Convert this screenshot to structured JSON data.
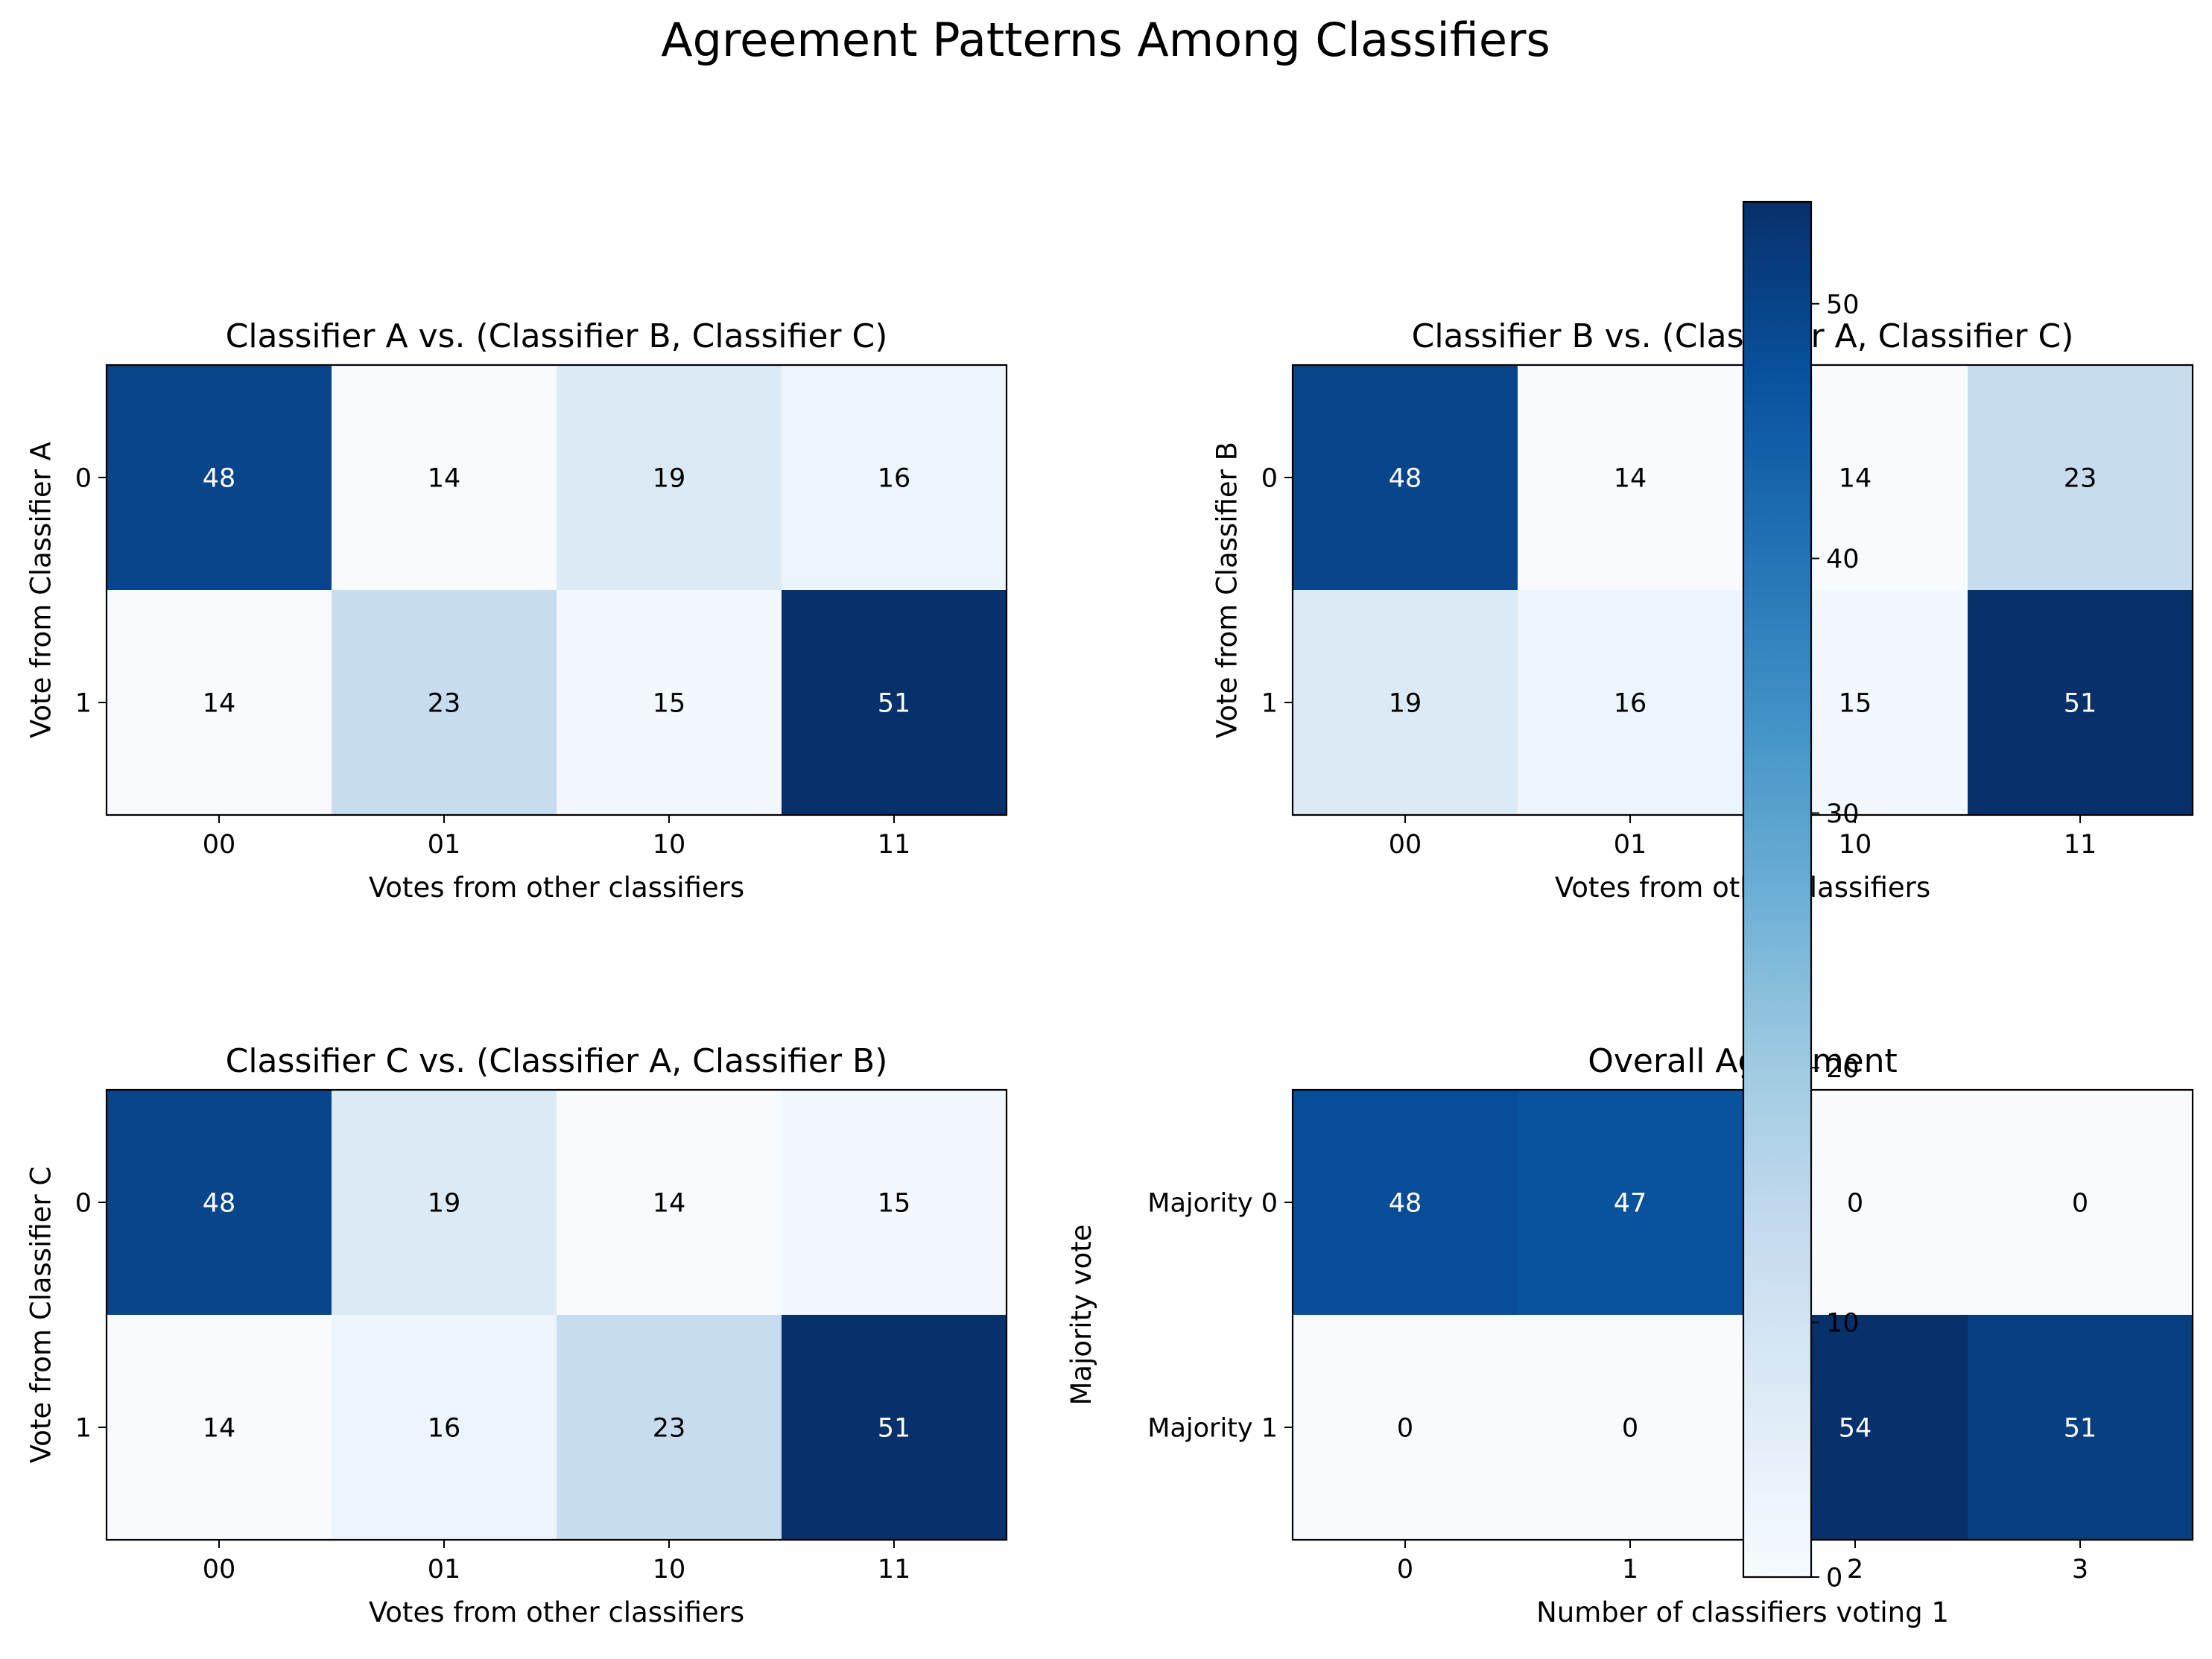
{
  "figure": {
    "suptitle": "Agreement Patterns Among Classifiers"
  },
  "colormap": {
    "name": "Blues",
    "light": "#f7fbff",
    "dark": "#08306b"
  },
  "chart_data": [
    {
      "type": "heatmap",
      "title": "Classifier A vs. (Classifier B, Classifier C)",
      "xlabel": "Votes from other classifiers",
      "ylabel": "Vote from Classifier A",
      "x_ticklabels": [
        "00",
        "01",
        "10",
        "11"
      ],
      "y_ticklabels": [
        "0",
        "1"
      ],
      "values": [
        [
          48,
          14,
          19,
          16
        ],
        [
          14,
          23,
          15,
          51
        ]
      ],
      "vmin": 14,
      "vmax": 51
    },
    {
      "type": "heatmap",
      "title": "Classifier B vs. (Classifier A, Classifier C)",
      "xlabel": "Votes from other classifiers",
      "ylabel": "Vote from Classifier B",
      "x_ticklabels": [
        "00",
        "01",
        "10",
        "11"
      ],
      "y_ticklabels": [
        "0",
        "1"
      ],
      "values": [
        [
          48,
          14,
          14,
          23
        ],
        [
          19,
          16,
          15,
          51
        ]
      ],
      "vmin": 14,
      "vmax": 51
    },
    {
      "type": "heatmap",
      "title": "Classifier C vs. (Classifier A, Classifier B)",
      "xlabel": "Votes from other classifiers",
      "ylabel": "Vote from Classifier C",
      "x_ticklabels": [
        "00",
        "01",
        "10",
        "11"
      ],
      "y_ticklabels": [
        "0",
        "1"
      ],
      "values": [
        [
          48,
          19,
          14,
          15
        ],
        [
          14,
          16,
          23,
          51
        ]
      ],
      "vmin": 14,
      "vmax": 51
    },
    {
      "type": "heatmap",
      "title": "Overall Agreement",
      "xlabel": "Number of classifiers voting 1",
      "ylabel": "Majority vote",
      "x_ticklabels": [
        "0",
        "1",
        "2",
        "3"
      ],
      "y_ticklabels": [
        "Majority 0",
        "Majority 1"
      ],
      "values": [
        [
          48,
          47,
          0,
          0
        ],
        [
          0,
          0,
          54,
          51
        ]
      ],
      "vmin": 0,
      "vmax": 54
    }
  ],
  "colorbar": {
    "vmin": 0,
    "vmax": 54,
    "ticks": [
      0,
      10,
      20,
      30,
      40,
      50
    ],
    "tick_labels": [
      "0",
      "10",
      "20",
      "30",
      "40",
      "50"
    ]
  }
}
